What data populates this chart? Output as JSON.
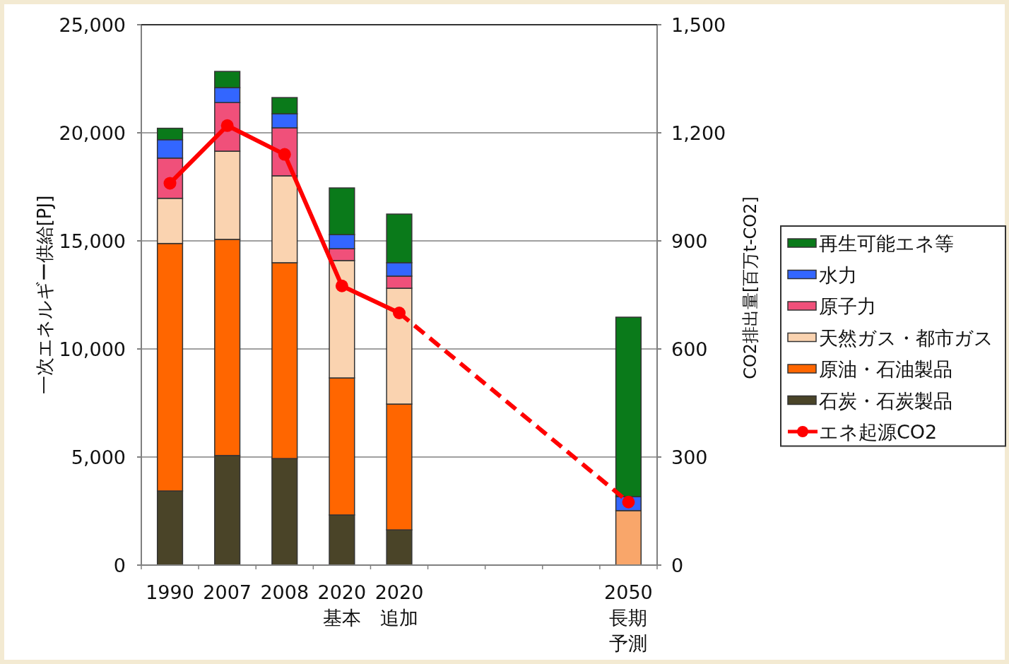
{
  "chart_data": {
    "type": "bar",
    "stacked": true,
    "categories": [
      "1990",
      "2007",
      "2008",
      "2020\n基本",
      "2020\n追加",
      null,
      null,
      null,
      "2050\n長期予測"
    ],
    "ylabel": "一次エネルギー供給[PJ]",
    "y2label": "CO2排出量[百万t-CO2]",
    "ylim": [
      0,
      25000
    ],
    "yticks": [
      {
        "value": 0,
        "label": "0"
      },
      {
        "value": 5000,
        "label": "5,000"
      },
      {
        "value": 10000,
        "label": "10,000"
      },
      {
        "value": 15000,
        "label": "15,000"
      },
      {
        "value": 20000,
        "label": "20,000"
      },
      {
        "value": 25000,
        "label": "25,000"
      }
    ],
    "y2lim": [
      0,
      1500
    ],
    "y2ticks": [
      {
        "value": 0,
        "label": "0"
      },
      {
        "value": 300,
        "label": "300"
      },
      {
        "value": 600,
        "label": "600"
      },
      {
        "value": 900,
        "label": "900"
      },
      {
        "value": 1200,
        "label": "1,200"
      },
      {
        "value": 1500,
        "label": "1,500"
      }
    ],
    "grid": "y",
    "legend": "right",
    "marker": "circle",
    "series": [
      {
        "name": "石炭・石炭製品",
        "color": "#4a4428",
        "values": [
          3430,
          5070,
          4930,
          2320,
          1630,
          null,
          null,
          null,
          null
        ]
      },
      {
        "name": "原油・石油製品",
        "color": "#ff6600",
        "colors": [
          "#ff6600",
          "#ff6600",
          "#ff6600",
          "#ff6600",
          "#ff6600",
          null,
          null,
          null,
          "#f9a66a"
        ],
        "values": [
          11450,
          10000,
          9060,
          6340,
          5820,
          null,
          null,
          null,
          2520
        ]
      },
      {
        "name": "天然ガス・都市ガス",
        "color": "#fad3b0",
        "values": [
          2090,
          4080,
          4020,
          5430,
          5360,
          null,
          null,
          null,
          null
        ]
      },
      {
        "name": "原子力",
        "color": "#f0507a",
        "values": [
          1860,
          2250,
          2220,
          550,
          560,
          null,
          null,
          null,
          null
        ]
      },
      {
        "name": "水力",
        "color": "#3366ff",
        "values": [
          850,
          690,
          650,
          650,
          620,
          null,
          null,
          null,
          650
        ]
      },
      {
        "name": "再生可能エネ等",
        "color": "#0a7a1a",
        "values": [
          530,
          750,
          750,
          2160,
          2250,
          null,
          null,
          null,
          8300
        ]
      },
      {
        "name": "エネ起源CO2",
        "type": "line",
        "axis": "y2",
        "color": "#ff0000",
        "line_style": "solid",
        "values": [
          1060,
          1220,
          1140,
          775,
          700,
          null,
          null,
          null,
          null
        ]
      },
      {
        "type": "line",
        "axis": "y2",
        "color": "#ff0000",
        "line_style": "dashed",
        "values": [
          null,
          null,
          null,
          null,
          700,
          null,
          null,
          null,
          175
        ]
      }
    ]
  }
}
